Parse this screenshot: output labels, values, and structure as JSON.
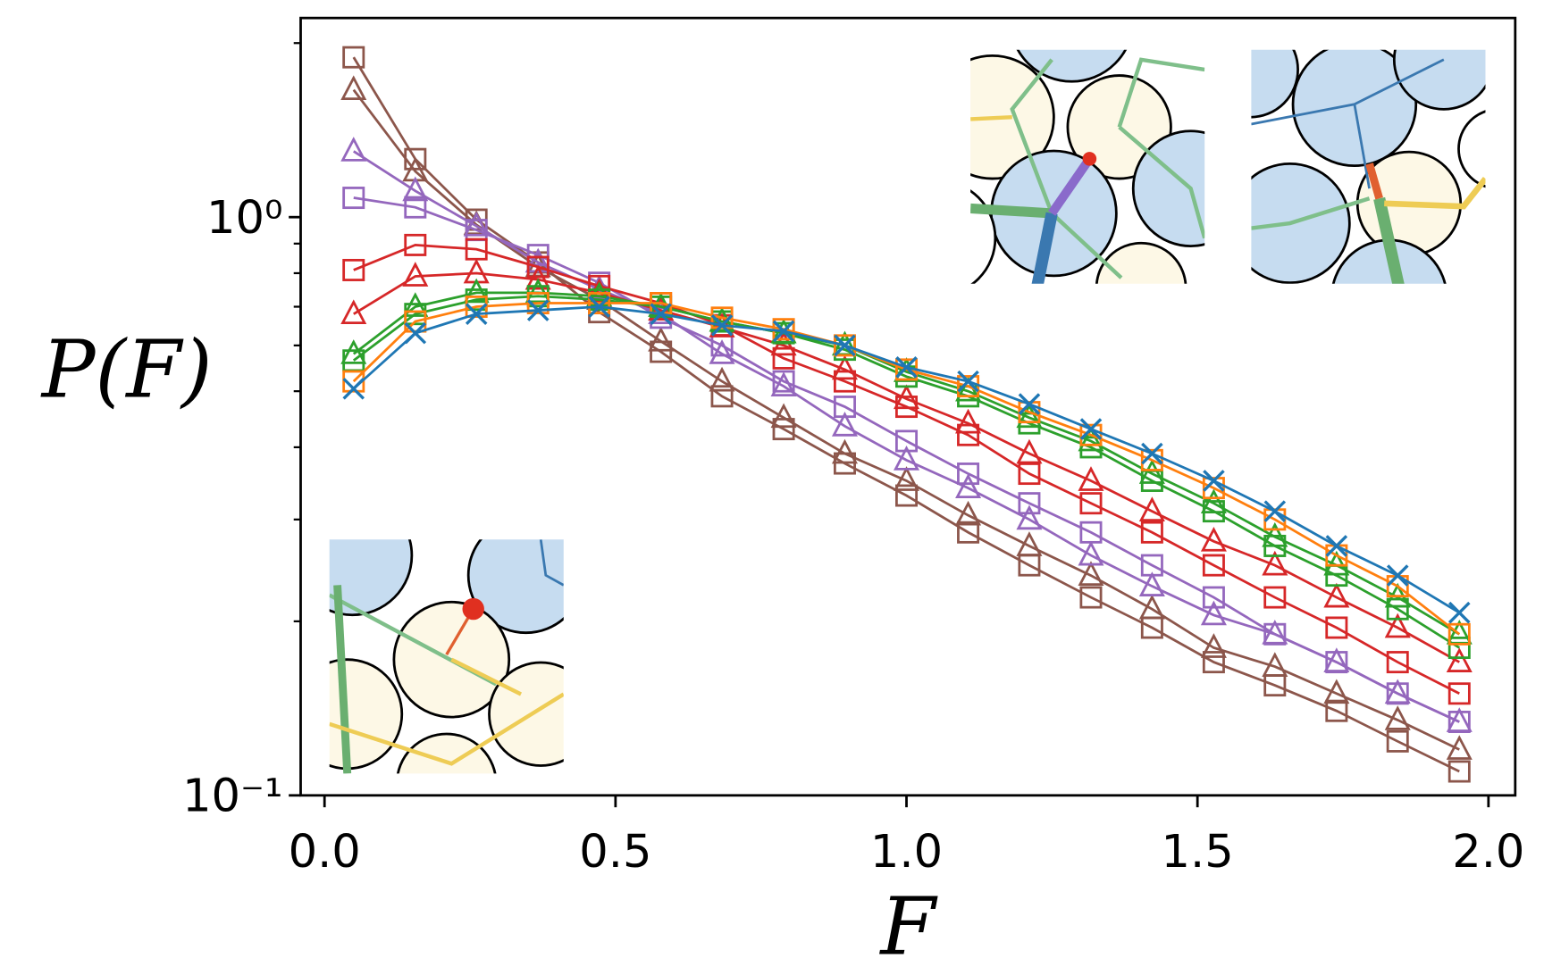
{
  "chart_data": {
    "type": "line",
    "xlabel": "F",
    "ylabel": "P(F)",
    "log_y": true,
    "xlim": [
      -0.041,
      2.046
    ],
    "ylim": [
      0.1,
      2.21
    ],
    "xticks": [
      {
        "value": 0,
        "label": "0.0"
      },
      0.5,
      {
        "value": 1,
        "label": "1.0"
      },
      1.5,
      {
        "value": 2,
        "label": "2.0"
      }
    ],
    "yticks": [
      {
        "value": 0.1,
        "label": "10⁻¹"
      },
      {
        "value": 1,
        "label": "10⁰"
      }
    ],
    "yminorticks": [
      0.2,
      0.3,
      0.4,
      0.5,
      0.6,
      0.7,
      0.8,
      0.9,
      2
    ],
    "x": [
      0.05,
      0.156,
      0.261,
      0.367,
      0.472,
      0.578,
      0.683,
      0.789,
      0.894,
      1.0,
      1.106,
      1.211,
      1.317,
      1.422,
      1.528,
      1.633,
      1.739,
      1.844,
      1.95
    ],
    "series": [
      {
        "color": "#1f77b4",
        "marker": "x",
        "values": [
          0.505,
          0.63,
          0.68,
          0.69,
          0.7,
          0.68,
          0.65,
          0.635,
          0.6,
          0.55,
          0.52,
          0.475,
          0.43,
          0.39,
          0.35,
          0.31,
          0.27,
          0.24,
          0.207
        ]
      },
      {
        "color": "#ff7f0e",
        "marker": "s",
        "values": [
          0.52,
          0.66,
          0.7,
          0.71,
          0.71,
          0.71,
          0.67,
          0.64,
          0.6,
          0.545,
          0.51,
          0.46,
          0.42,
          0.38,
          0.34,
          0.3,
          0.26,
          0.23,
          0.19
        ]
      },
      {
        "color": "#2ca02c",
        "marker": "^",
        "values": [
          0.58,
          0.7,
          0.74,
          0.74,
          0.73,
          0.7,
          0.66,
          0.63,
          0.6,
          0.54,
          0.5,
          0.45,
          0.41,
          0.36,
          0.32,
          0.28,
          0.25,
          0.22,
          0.19
        ]
      },
      {
        "color": "#2ca02c",
        "marker": "s",
        "values": [
          0.565,
          0.68,
          0.72,
          0.73,
          0.72,
          0.7,
          0.66,
          0.63,
          0.59,
          0.53,
          0.49,
          0.44,
          0.4,
          0.35,
          0.31,
          0.27,
          0.24,
          0.21,
          0.18
        ]
      },
      {
        "color": "#d62728",
        "marker": "^",
        "values": [
          0.68,
          0.79,
          0.8,
          0.78,
          0.74,
          0.69,
          0.645,
          0.6,
          0.545,
          0.485,
          0.44,
          0.39,
          0.35,
          0.31,
          0.275,
          0.25,
          0.22,
          0.195,
          0.17
        ]
      },
      {
        "color": "#d62728",
        "marker": "s",
        "values": [
          0.81,
          0.895,
          0.88,
          0.82,
          0.76,
          0.71,
          0.65,
          0.57,
          0.52,
          0.47,
          0.42,
          0.36,
          0.32,
          0.285,
          0.25,
          0.22,
          0.195,
          0.17,
          0.15
        ]
      },
      {
        "color": "#9467bd",
        "marker": "^",
        "values": [
          1.3,
          1.11,
          0.965,
          0.835,
          0.75,
          0.68,
          0.58,
          0.51,
          0.435,
          0.38,
          0.34,
          0.3,
          0.26,
          0.23,
          0.205,
          0.19,
          0.17,
          0.15,
          0.134
        ]
      },
      {
        "color": "#9467bd",
        "marker": "s",
        "values": [
          1.08,
          1.04,
          0.95,
          0.86,
          0.77,
          0.67,
          0.6,
          0.52,
          0.47,
          0.41,
          0.36,
          0.32,
          0.285,
          0.25,
          0.22,
          0.19,
          0.17,
          0.15,
          0.134
        ]
      },
      {
        "color": "#8c564b",
        "marker": "^",
        "values": [
          1.66,
          1.2,
          0.97,
          0.82,
          0.72,
          0.61,
          0.52,
          0.45,
          0.39,
          0.35,
          0.305,
          0.27,
          0.24,
          0.21,
          0.18,
          0.167,
          0.15,
          0.135,
          0.12
        ]
      },
      {
        "color": "#8c564b",
        "marker": "s",
        "values": [
          1.89,
          1.26,
          0.99,
          0.835,
          0.685,
          0.585,
          0.49,
          0.43,
          0.375,
          0.33,
          0.285,
          0.25,
          0.22,
          0.195,
          0.17,
          0.155,
          0.14,
          0.124,
          0.11
        ]
      }
    ]
  }
}
